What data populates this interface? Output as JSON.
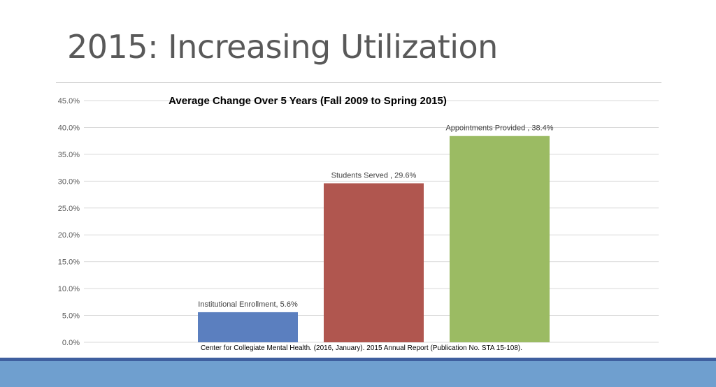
{
  "slide": {
    "title": "2015: Increasing Utilization"
  },
  "colors": {
    "institutional_enrollment": "#5b7fbf",
    "students_served": "#b0564f",
    "appointments_provided": "#9bbb63",
    "footer_band": "#6f9fcf",
    "footer_thin": "#3f5f9f"
  },
  "chart_data": {
    "type": "bar",
    "title": "Average Change Over 5 Years (Fall 2009 to Spring 2015)",
    "xlabel": "",
    "ylabel": "",
    "ylim": [
      0,
      45
    ],
    "yticks": [
      "0.0%",
      "5.0%",
      "10.0%",
      "15.0%",
      "20.0%",
      "25.0%",
      "30.0%",
      "35.0%",
      "40.0%",
      "45.0%"
    ],
    "grid": true,
    "categories": [
      "Institutional Enrollment",
      "Students Served",
      "Appointments Provided"
    ],
    "values": [
      5.6,
      29.6,
      38.4
    ],
    "data_labels": [
      "Institutional Enrollment, 5.6%",
      "Students Served , 29.6%",
      "Appointments Provided , 38.4%"
    ],
    "source_note": "Center for Collegiate Mental Health. (2016, January). 2015 Annual Report (Publication No. STA 15-108)."
  }
}
